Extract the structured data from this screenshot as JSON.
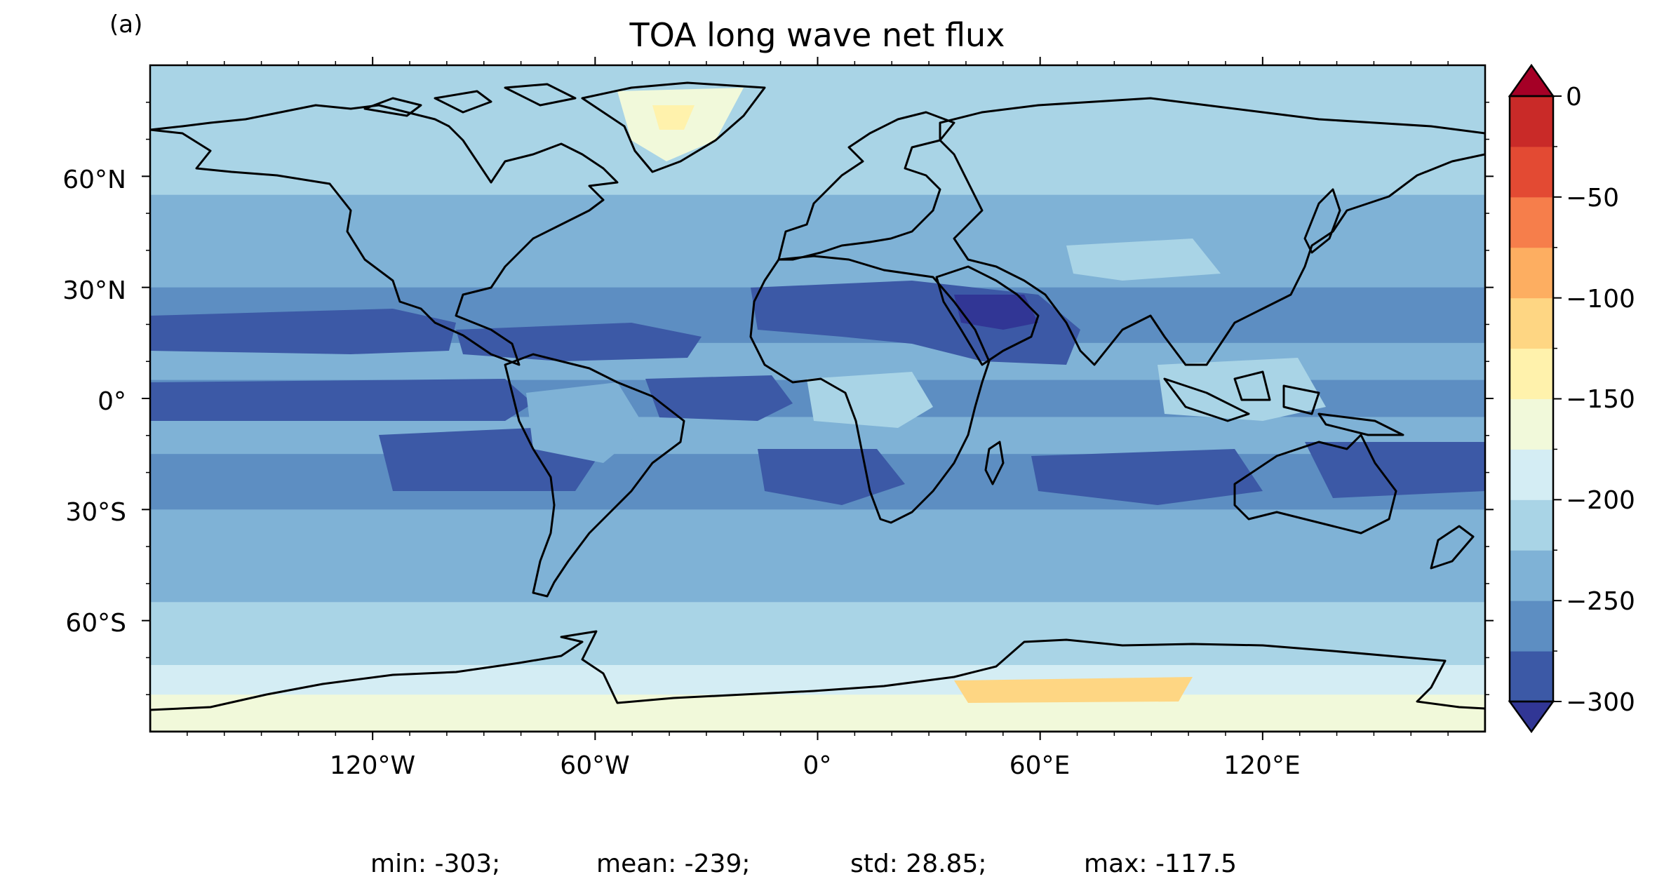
{
  "panel_label": "(a)",
  "title": "TOA long wave net flux",
  "lat_ticks": [
    "60°N",
    "30°N",
    "0°",
    "30°S",
    "60°S"
  ],
  "lon_ticks": [
    "120°W",
    "60°W",
    "0°",
    "60°E",
    "120°E"
  ],
  "colorbar": {
    "ticks": [
      "0",
      "−50",
      "−100",
      "−150",
      "−200",
      "−250",
      "−300"
    ],
    "min": -300,
    "max": 0,
    "step": 25,
    "extend": "both",
    "colors": [
      "#313695",
      "#3c59a6",
      "#5d8ec2",
      "#7fb2d6",
      "#a9d4e6",
      "#d4edf4",
      "#f1f9da",
      "#fff2ac",
      "#fed683",
      "#fdae61",
      "#f67e4b",
      "#e34a33",
      "#c92a28",
      "#a50026"
    ]
  },
  "stats": {
    "min": "min: -303;",
    "mean": "mean: -239;",
    "std": "std: 28.85;",
    "max": "max: -117.5"
  }
}
